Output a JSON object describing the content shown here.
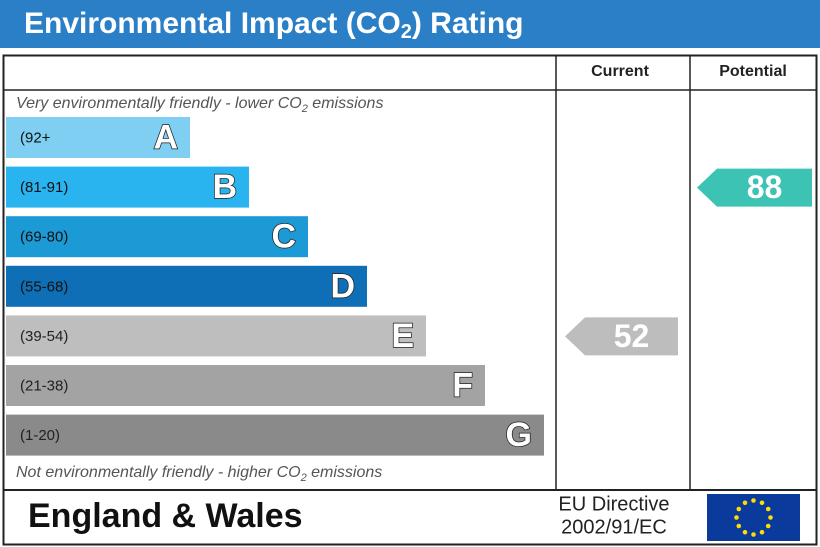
{
  "title": {
    "main": "Environmental Impact (CO",
    "sub": "2",
    "tail": ") Rating"
  },
  "headers": {
    "current": "Current",
    "potential": "Potential"
  },
  "top_note": {
    "main": "Very environmentally friendly - lower CO",
    "sub": "2",
    "tail": " emissions"
  },
  "bottom_note": {
    "main": "Not environmentally friendly - higher CO",
    "sub": "2",
    "tail": " emissions"
  },
  "bands": [
    {
      "range": "(92+",
      "letter": "A",
      "color": "#7fcff3"
    },
    {
      "range": "(81-91)",
      "letter": "B",
      "color": "#2ab4ef"
    },
    {
      "range": "(69-80)",
      "letter": "C",
      "color": "#1b9ad6"
    },
    {
      "range": "(55-68)",
      "letter": "D",
      "color": "#0f6fb6"
    },
    {
      "range": "(39-54)",
      "letter": "E",
      "color": "#bebebe"
    },
    {
      "range": "(21-38)",
      "letter": "F",
      "color": "#a3a3a3"
    },
    {
      "range": "(1-20)",
      "letter": "G",
      "color": "#8a8a8a"
    }
  ],
  "current": {
    "value": 52,
    "color": "#bdbdbd"
  },
  "potential": {
    "value": 88,
    "color": "#3cc3b4"
  },
  "footer": {
    "region": "England & Wales",
    "directive_line1": "EU Directive",
    "directive_line2": "2002/91/EC"
  }
}
